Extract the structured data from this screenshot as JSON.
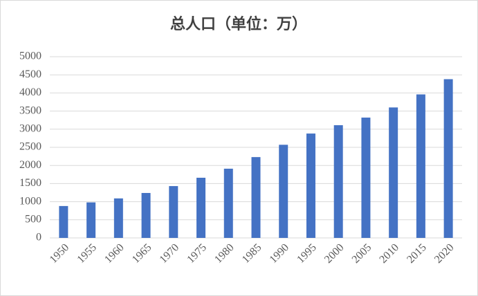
{
  "chart_data": {
    "type": "bar",
    "title": "总人口（单位：万）",
    "categories": [
      "1950",
      "1955",
      "1960",
      "1965",
      "1970",
      "1975",
      "1980",
      "1985",
      "1990",
      "1995",
      "2000",
      "2005",
      "2010",
      "2015",
      "2020"
    ],
    "values": [
      880,
      980,
      1090,
      1240,
      1430,
      1660,
      1910,
      2230,
      2570,
      2880,
      3110,
      3320,
      3600,
      3960,
      4380
    ],
    "color": "#4472c4",
    "ylim": [
      0,
      5000
    ],
    "yticks": [
      0,
      500,
      1000,
      1500,
      2000,
      2500,
      3000,
      3500,
      4000,
      4500,
      5000
    ],
    "grid": true
  }
}
